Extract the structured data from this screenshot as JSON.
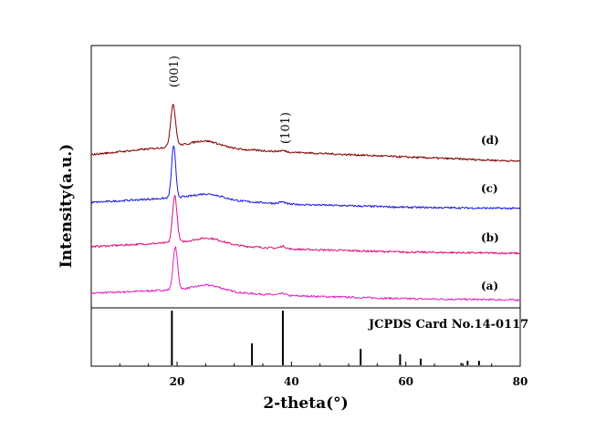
{
  "chart_data": {
    "type": "line",
    "title": "",
    "xlabel": "2-theta(°)",
    "ylabel": "Intensity(a.u.)",
    "xlim": [
      5,
      80
    ],
    "xticks": [
      20,
      40,
      60,
      80
    ],
    "xtick_labels": [
      "20",
      "40",
      "60",
      "80"
    ],
    "x_minor_step": 5,
    "y_units": "arbitrary",
    "series": [
      {
        "name": "(a)",
        "color": "#e020c0",
        "offset": 0.0,
        "baseline": [
          [
            5,
            0.6
          ],
          [
            20,
            0.9
          ],
          [
            40,
            0.4
          ],
          [
            60,
            0.15
          ],
          [
            80,
            0.05
          ]
        ],
        "peaks": [
          {
            "pos": 19.7,
            "height": 3.5,
            "width": 0.55
          },
          {
            "pos": 25.5,
            "height": 0.5,
            "width": 3.5
          },
          {
            "pos": 38.5,
            "height": 0.15,
            "width": 0.7
          }
        ]
      },
      {
        "name": "(b)",
        "color": "#e0107a",
        "offset": 3.9,
        "baseline": [
          [
            5,
            0.55
          ],
          [
            20,
            0.9
          ],
          [
            40,
            0.35
          ],
          [
            60,
            0.1
          ],
          [
            80,
            0.0
          ]
        ],
        "peaks": [
          {
            "pos": 19.6,
            "height": 3.85,
            "width": 0.55
          },
          {
            "pos": 25.5,
            "height": 0.5,
            "width": 3.5
          },
          {
            "pos": 38.5,
            "height": 0.2,
            "width": 0.7
          }
        ]
      },
      {
        "name": "(c)",
        "color": "#1a1ae0",
        "offset": 7.6,
        "baseline": [
          [
            5,
            0.5
          ],
          [
            20,
            0.9
          ],
          [
            40,
            0.35
          ],
          [
            60,
            0.1
          ],
          [
            80,
            0.0
          ]
        ],
        "peaks": [
          {
            "pos": 19.4,
            "height": 4.3,
            "width": 0.5
          },
          {
            "pos": 25.5,
            "height": 0.45,
            "width": 3.5
          },
          {
            "pos": 38.4,
            "height": 0.15,
            "width": 0.7
          }
        ]
      },
      {
        "name": "(d)",
        "color": "#800000",
        "offset": 11.3,
        "baseline": [
          [
            5,
            0.75
          ],
          [
            20,
            1.45
          ],
          [
            40,
            0.95
          ],
          [
            60,
            0.55
          ],
          [
            80,
            0.2
          ]
        ],
        "peaks": [
          {
            "pos": 19.3,
            "height": 3.45,
            "width": 0.6
          },
          {
            "pos": 25.0,
            "height": 0.55,
            "width": 3.5
          },
          {
            "pos": 38.5,
            "height": 0.1,
            "width": 0.7
          }
        ]
      }
    ],
    "peak_annotations": [
      {
        "label": "(001)",
        "x": 19.3
      },
      {
        "label": "(101)",
        "x": 38.5
      }
    ],
    "reference": {
      "label": "JCPDS Card No.14-0117",
      "sticks": [
        {
          "x": 19.1,
          "intensity": 100
        },
        {
          "x": 33.1,
          "intensity": 40
        },
        {
          "x": 38.5,
          "intensity": 100
        },
        {
          "x": 52.1,
          "intensity": 30
        },
        {
          "x": 59.0,
          "intensity": 20
        },
        {
          "x": 62.6,
          "intensity": 12
        },
        {
          "x": 69.7,
          "intensity": 4
        },
        {
          "x": 70.8,
          "intensity": 8
        },
        {
          "x": 72.8,
          "intensity": 8
        }
      ]
    }
  }
}
